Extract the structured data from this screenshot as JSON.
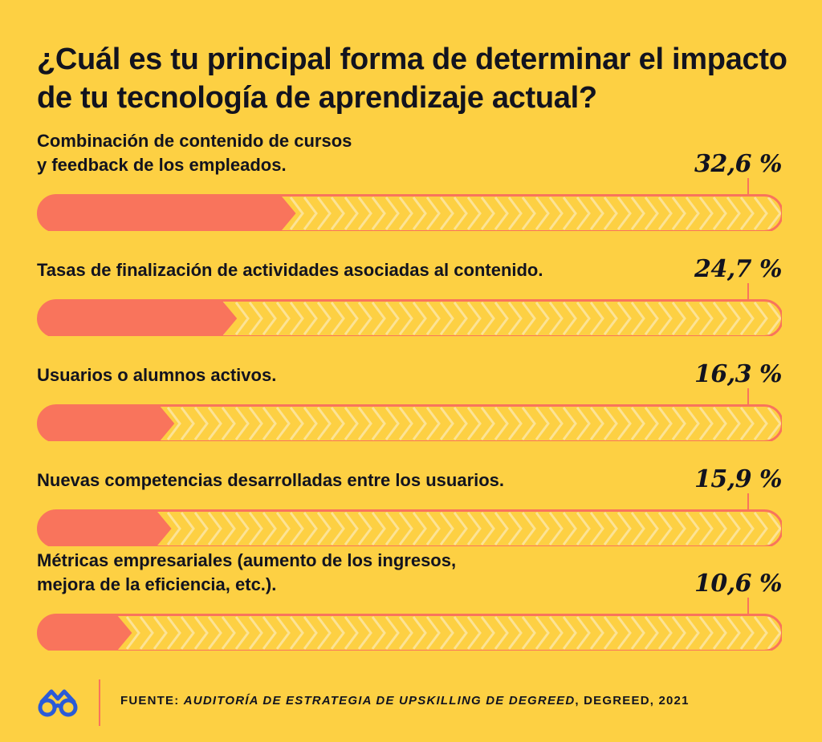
{
  "chart_data": {
    "type": "bar",
    "orientation": "horizontal",
    "title": "¿Cuál es tu principal forma de determinar el impacto de tu tecnología de aprendizaje actual?",
    "value_labels": [
      "32,6 %",
      "24,7 %",
      "16,3 %",
      "15,9 %",
      "10,6 %"
    ],
    "values": [
      32.6,
      24.7,
      16.3,
      15.9,
      10.6
    ],
    "xlim": [
      0,
      100
    ],
    "grid": false,
    "categories": [
      [
        "Combinación de contenido de cursos",
        "y feedback de los empleados."
      ],
      [
        "Tasas de finalización de actividades asociadas al contenido."
      ],
      [
        "Usuarios o alumnos activos."
      ],
      [
        "Nuevas competencias desarrolladas entre los usuarios."
      ],
      [
        "Métricas empresariales (aumento de los ingresos,",
        "mejora de la eficiencia, etc.)."
      ]
    ]
  },
  "colors": {
    "background": "#fdd043",
    "bar_fill": "#f9745c",
    "track_pattern": "#fce396",
    "text": "#12131f",
    "logo": "#2a5bd7"
  },
  "footer": {
    "source_prefix": "FUENTE: ",
    "source_italic": "AUDITORÍA DE ESTRATEGIA DE UPSKILLING DE DEGREED",
    "source_suffix": ", DEGREED, 2021",
    "logo_icon": "degreed-glasses-icon"
  }
}
